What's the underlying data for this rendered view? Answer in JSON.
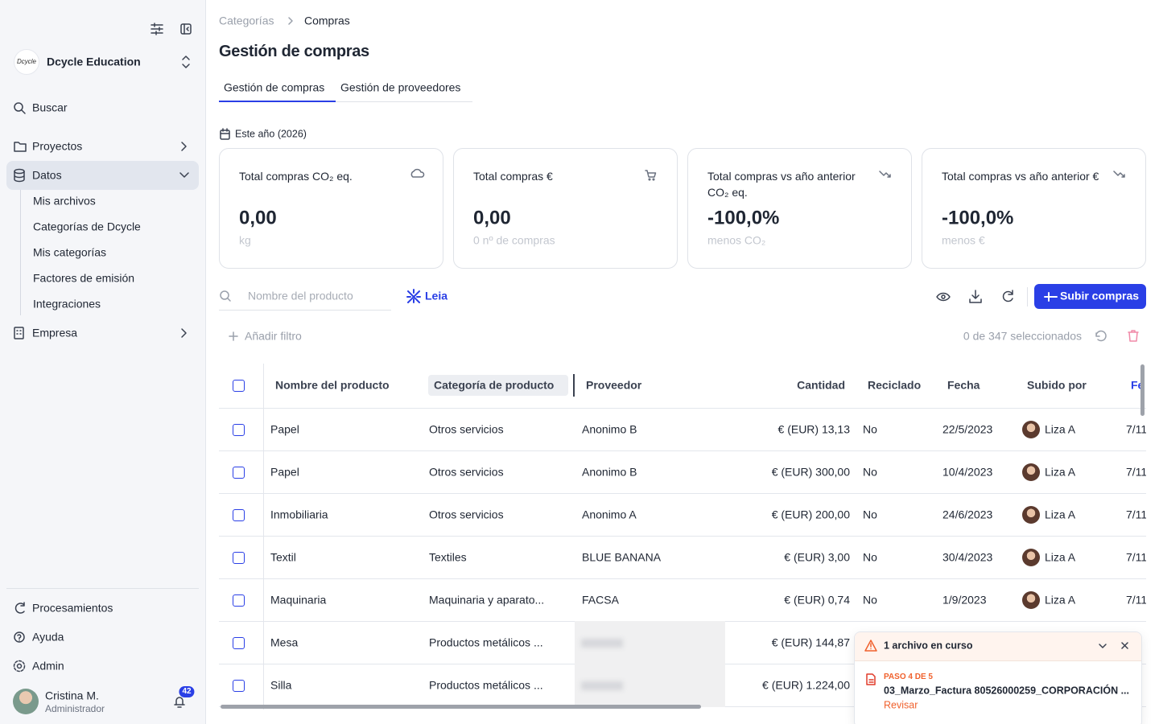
{
  "sidebar": {
    "logo": "Dcycle",
    "org": "Dcycle Education",
    "search": "Buscar",
    "nav": [
      "Proyectos",
      "Datos",
      "Empresa"
    ],
    "datos_items": [
      "Mis archivos",
      "Categorías de Dcycle",
      "Mis categorías",
      "Factores de emisión",
      "Integraciones"
    ],
    "footer_nav": [
      "Procesamientos",
      "Ayuda",
      "Admin"
    ],
    "user": {
      "name": "Cristina M.",
      "role": "Administrador",
      "notifications": 42
    }
  },
  "breadcrumb": [
    "Categorías",
    "Compras"
  ],
  "title": "Gestión de compras",
  "tabs": [
    "Gestión de compras",
    "Gestión de proveedores"
  ],
  "period": "Este año (2026)",
  "cards": [
    {
      "title": "Total compras CO₂ eq.",
      "value": "0,00",
      "subtitle": "kg"
    },
    {
      "title": "Total compras €",
      "value": "0,00",
      "subtitle": "0 nº de compras"
    },
    {
      "title": "Total compras vs año anterior CO₂ eq.",
      "value": "-100,0%",
      "subtitle": "menos CO₂"
    },
    {
      "title": "Total compras vs año anterior €",
      "value": "-100,0%",
      "subtitle": "menos €"
    }
  ],
  "toolbar": {
    "search_placeholder": "Nombre del producto",
    "assistant": "Leia",
    "upload": "Subir compras",
    "add_filter": "Añadir filtro",
    "selection": "0 de 347 seleccionados"
  },
  "table": {
    "columns": [
      "Nombre del producto",
      "Categoría de producto",
      "Proveedor",
      "Cantidad",
      "Reciclado",
      "Fecha",
      "Subido por",
      "Fe"
    ],
    "rows": [
      [
        "Papel",
        "Otros servicios",
        "Anonimo B",
        "€ (EUR) 13,13",
        "No",
        "22/5/2023",
        "Liza A",
        "7/11"
      ],
      [
        "Papel",
        "Otros servicios",
        "Anonimo B",
        "€ (EUR) 300,00",
        "No",
        "10/4/2023",
        "Liza A",
        "7/11"
      ],
      [
        "Inmobiliaria",
        "Otros servicios",
        "Anonimo A",
        "€ (EUR) 200,00",
        "No",
        "24/6/2023",
        "Liza A",
        "7/11"
      ],
      [
        "Textil",
        "Textiles",
        "BLUE BANANA",
        "€ (EUR) 3,00",
        "No",
        "30/4/2023",
        "Liza A",
        "7/11"
      ],
      [
        "Maquinaria",
        "Maquinaria y aparato...",
        "FACSA",
        "€ (EUR) 0,74",
        "No",
        "1/9/2023",
        "Liza A",
        "7/11"
      ],
      [
        "Mesa",
        "Productos metálicos ...",
        null,
        "€ (EUR) 144,87",
        null,
        null,
        null,
        null
      ],
      [
        "Silla",
        "Productos metálicos ...",
        null,
        "€ (EUR) 1.224,00",
        null,
        null,
        null,
        null
      ]
    ]
  },
  "toast": {
    "title": "1 archivo en curso",
    "step": "PASO 4 DE 5",
    "file": "03_Marzo_Factura 80526000259_CORPORACIÓN ...",
    "action": "Revisar"
  }
}
